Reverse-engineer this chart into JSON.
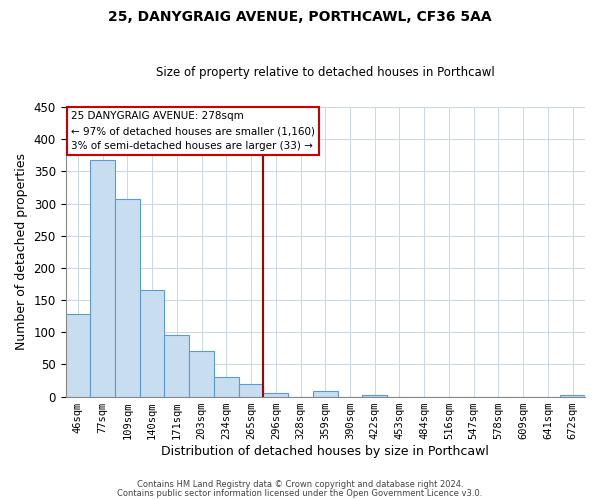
{
  "title": "25, DANYGRAIG AVENUE, PORTHCAWL, CF36 5AA",
  "subtitle": "Size of property relative to detached houses in Porthcawl",
  "xlabel": "Distribution of detached houses by size in Porthcawl",
  "ylabel": "Number of detached properties",
  "bar_labels": [
    "46sqm",
    "77sqm",
    "109sqm",
    "140sqm",
    "171sqm",
    "203sqm",
    "234sqm",
    "265sqm",
    "296sqm",
    "328sqm",
    "359sqm",
    "390sqm",
    "422sqm",
    "453sqm",
    "484sqm",
    "516sqm",
    "547sqm",
    "578sqm",
    "609sqm",
    "641sqm",
    "672sqm"
  ],
  "bar_values": [
    128,
    367,
    307,
    165,
    95,
    71,
    30,
    20,
    6,
    0,
    9,
    0,
    3,
    0,
    0,
    0,
    0,
    0,
    0,
    0,
    2
  ],
  "bar_color": "#c8ddf0",
  "bar_edge_color": "#5b9bd5",
  "ylim": [
    0,
    450
  ],
  "yticks": [
    0,
    50,
    100,
    150,
    200,
    250,
    300,
    350,
    400,
    450
  ],
  "vline_x": 7.5,
  "vline_color": "#aa0000",
  "annotation_title": "25 DANYGRAIG AVENUE: 278sqm",
  "annotation_line1": "← 97% of detached houses are smaller (1,160)",
  "annotation_line2": "3% of semi-detached houses are larger (33) →",
  "footer1": "Contains HM Land Registry data © Crown copyright and database right 2024.",
  "footer2": "Contains public sector information licensed under the Open Government Licence v3.0.",
  "background_color": "#ffffff",
  "grid_color": "#c8d8e8"
}
